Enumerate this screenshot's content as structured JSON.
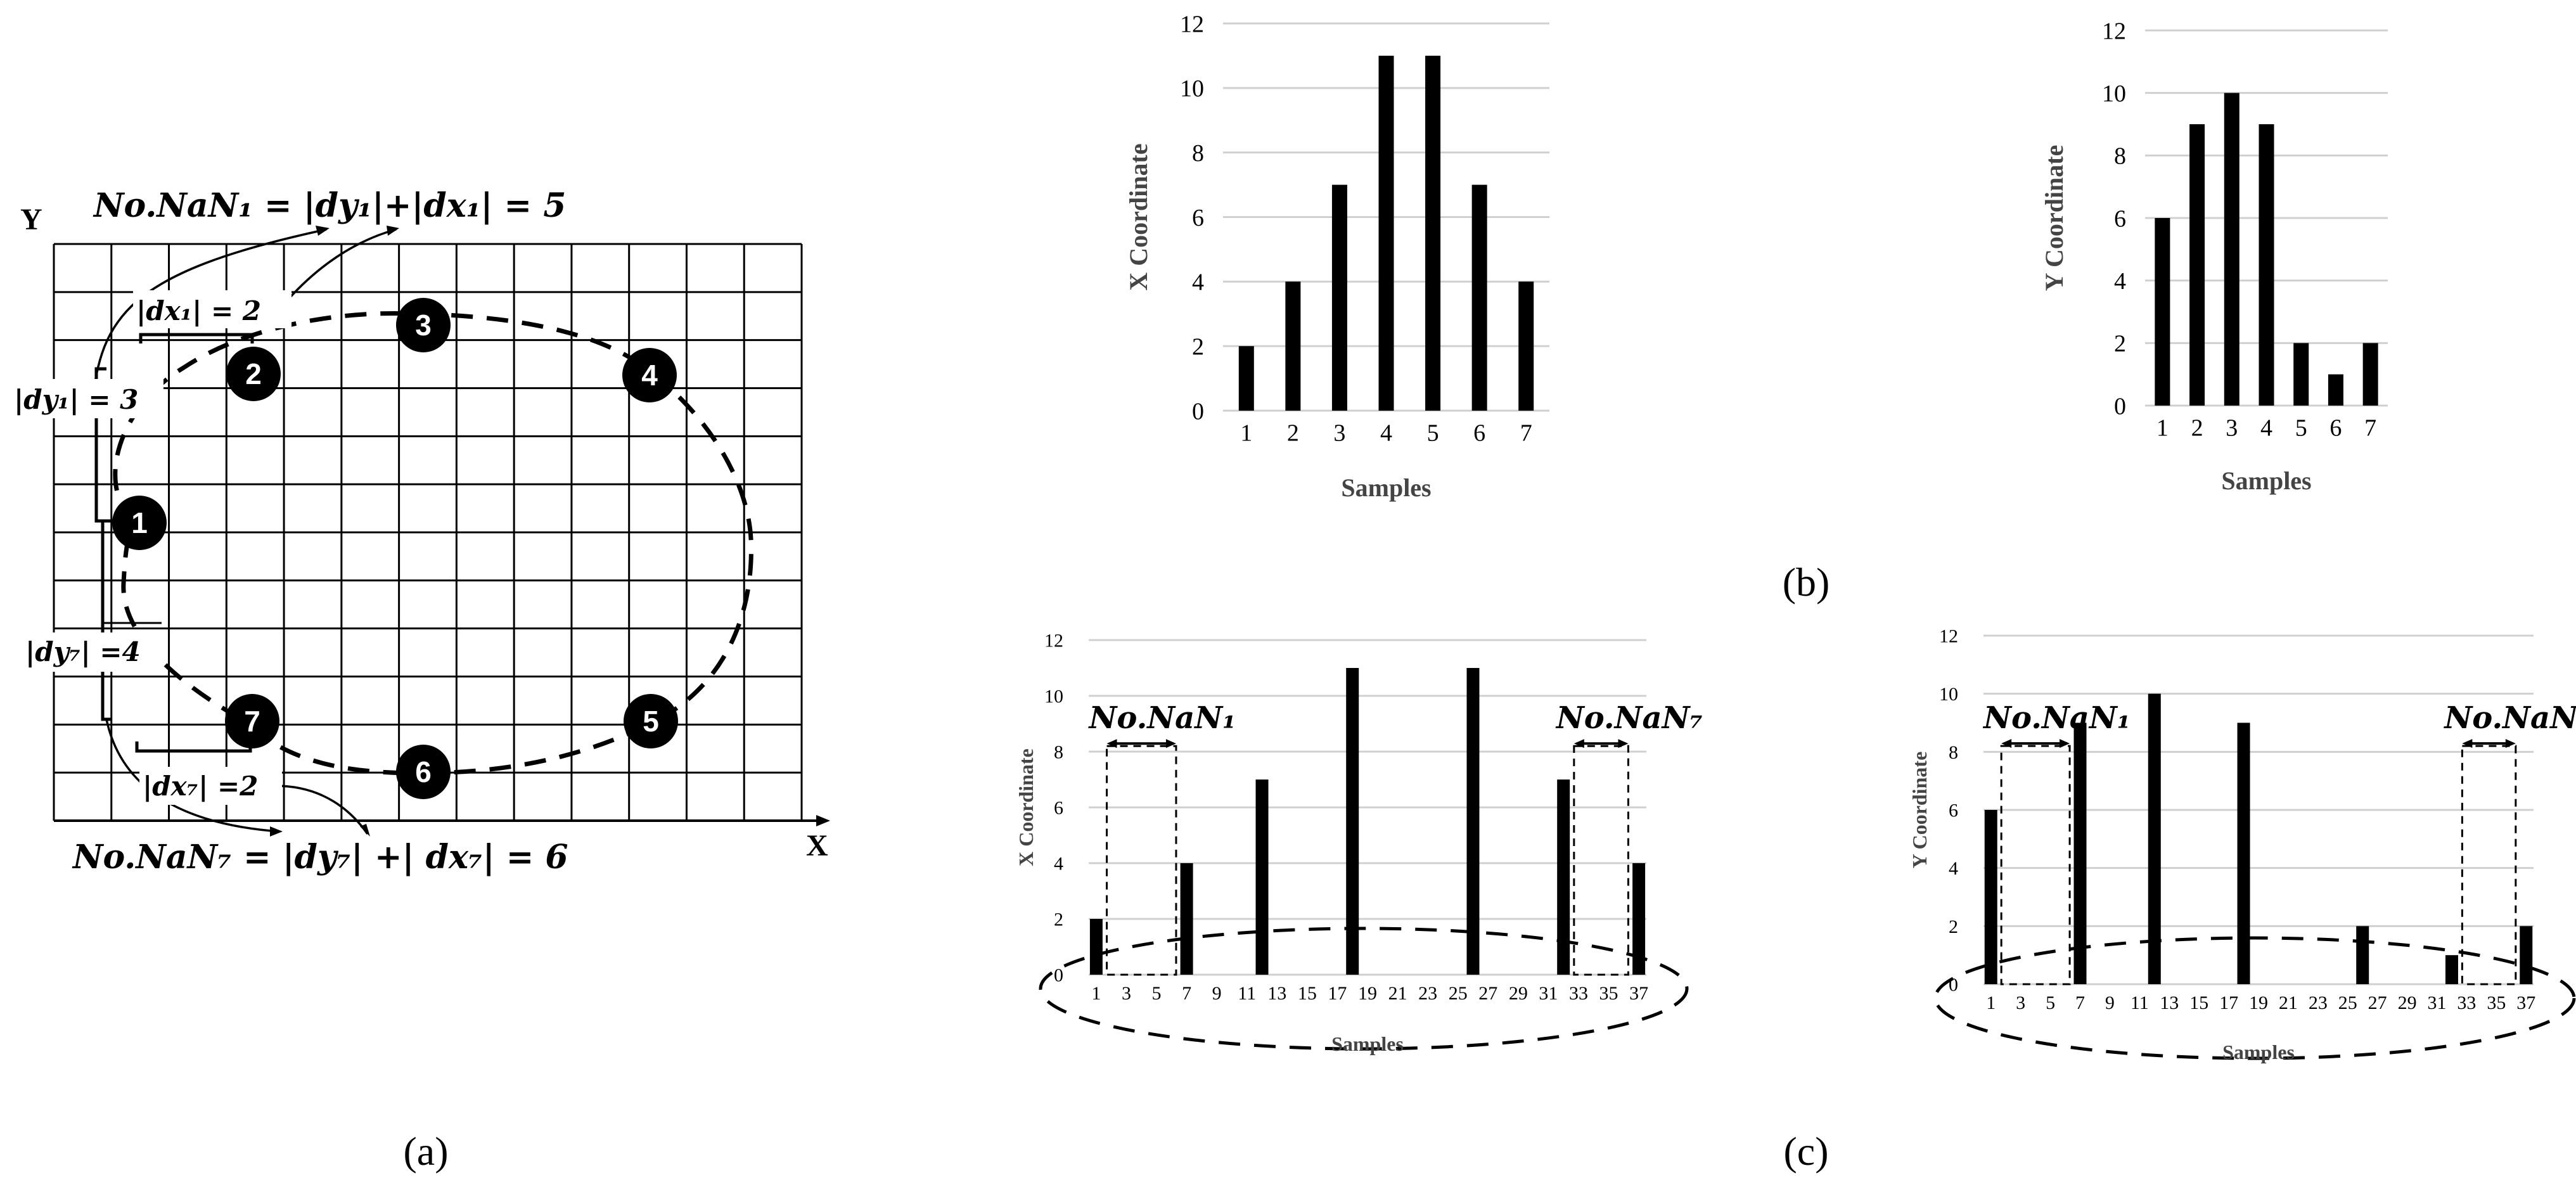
{
  "panel_a": {
    "axis_y": "Y",
    "axis_x": "X",
    "formula_top": "No.NaN₁ = |dy₁|+|dx₁| = 5",
    "formula_bottom": "No.NaN₇ = |dy₇| +| dx₇| = 6",
    "dx1": "|dx₁| = 2",
    "dy1": "|dy₁| = 3",
    "dy7": "|dy₇| =4",
    "dx7": "|dx₇| =2",
    "points": [
      "1",
      "2",
      "3",
      "4",
      "5",
      "6",
      "7"
    ],
    "caption": "(a)"
  },
  "panel_b": {
    "caption": "(b)"
  },
  "panel_c": {
    "caption": "(c)",
    "nan_left": "No.NaN₁",
    "nan_right": "No.NaN₇"
  },
  "chart_data": [
    {
      "id": "b-x",
      "type": "bar",
      "categories": [
        "1",
        "2",
        "3",
        "4",
        "5",
        "6",
        "7"
      ],
      "values": [
        2,
        4,
        7,
        11,
        11,
        7,
        4
      ],
      "xlabel": "Samples",
      "ylabel": "X Coordinate",
      "ylim": [
        0,
        12
      ],
      "yticks": [
        "0",
        "2",
        "4",
        "6",
        "8",
        "10",
        "12"
      ],
      "grid": true
    },
    {
      "id": "b-y",
      "type": "bar",
      "categories": [
        "1",
        "2",
        "3",
        "4",
        "5",
        "6",
        "7"
      ],
      "values": [
        6,
        9,
        10,
        9,
        2,
        1,
        2
      ],
      "xlabel": "Samples",
      "ylabel": "Y Coordinate",
      "ylim": [
        0,
        12
      ],
      "yticks": [
        "0",
        "2",
        "4",
        "6",
        "8",
        "10",
        "12"
      ],
      "grid": true
    },
    {
      "id": "c-x",
      "type": "bar",
      "x": [
        1,
        7,
        12,
        18,
        26,
        32,
        37
      ],
      "values": [
        2,
        4,
        7,
        11,
        11,
        7,
        4
      ],
      "xticks": [
        "1",
        "3",
        "5",
        "7",
        "9",
        "11",
        "13",
        "15",
        "17",
        "19",
        "21",
        "23",
        "25",
        "27",
        "29",
        "31",
        "33",
        "35",
        "37"
      ],
      "xlabel": "Samples",
      "ylabel": "X Coordinate",
      "ylim": [
        0,
        12
      ],
      "yticks": [
        "0",
        "2",
        "4",
        "6",
        "8",
        "10",
        "12"
      ],
      "grid": true
    },
    {
      "id": "c-y",
      "type": "bar",
      "x": [
        1,
        7,
        12,
        18,
        26,
        32,
        37
      ],
      "values": [
        6,
        9,
        10,
        9,
        2,
        1,
        2
      ],
      "xticks": [
        "1",
        "3",
        "5",
        "7",
        "9",
        "11",
        "13",
        "15",
        "17",
        "19",
        "21",
        "23",
        "25",
        "27",
        "29",
        "31",
        "33",
        "35",
        "37"
      ],
      "xlabel": "Samples",
      "ylabel": "Y Coordinate",
      "ylim": [
        0,
        12
      ],
      "yticks": [
        "0",
        "2",
        "4",
        "6",
        "8",
        "10",
        "12"
      ],
      "grid": true
    }
  ]
}
